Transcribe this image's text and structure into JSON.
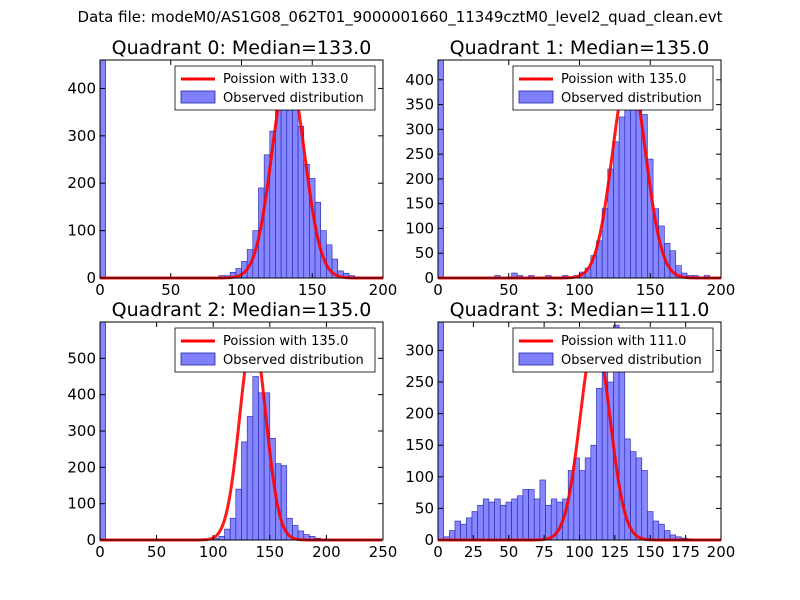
{
  "figure": {
    "suptitle": "Data file: modeM0/AS1G08_062T01_9000001660_11349cztM0_level2_quad_clean.evt"
  },
  "colors": {
    "bar_fill": "#8080ff",
    "bar_edge": "#2222aa",
    "model_line": "#ff0000"
  },
  "chart_data": [
    {
      "type": "bar",
      "title": "Quadrant 0: Median=133.0",
      "legend": {
        "placement": "top-right",
        "entries": [
          "Poission with 133.0",
          "Observed distribution"
        ]
      },
      "xlim": [
        0,
        200
      ],
      "ylim": [
        0,
        460
      ],
      "xticks": [
        0,
        50,
        100,
        150,
        200
      ],
      "yticks": [
        0,
        100,
        200,
        300,
        400
      ],
      "bin_width": 4,
      "bins_x": [
        0,
        84,
        88,
        92,
        96,
        100,
        104,
        108,
        112,
        116,
        120,
        124,
        128,
        132,
        136,
        140,
        144,
        148,
        152,
        156,
        160,
        164,
        168,
        172,
        176,
        180
      ],
      "bins_y": [
        460,
        5,
        5,
        12,
        20,
        35,
        60,
        100,
        190,
        260,
        310,
        370,
        410,
        430,
        390,
        320,
        240,
        210,
        160,
        100,
        70,
        40,
        15,
        10,
        5,
        2
      ],
      "poisson_mean": 133.0,
      "poisson_peak": 435
    },
    {
      "type": "bar",
      "title": "Quadrant 1: Median=135.0",
      "legend": {
        "placement": "top-right",
        "entries": [
          "Poission with 135.0",
          "Observed distribution"
        ]
      },
      "xlim": [
        0,
        200
      ],
      "ylim": [
        0,
        440
      ],
      "xticks": [
        0,
        50,
        100,
        150,
        200
      ],
      "yticks": [
        0,
        50,
        100,
        150,
        200,
        250,
        300,
        350,
        400
      ],
      "bin_width": 4,
      "bins_x": [
        0,
        40,
        52,
        56,
        64,
        76,
        88,
        96,
        100,
        104,
        108,
        112,
        116,
        120,
        124,
        128,
        132,
        136,
        140,
        144,
        148,
        152,
        156,
        160,
        164,
        168,
        172,
        176,
        180,
        188
      ],
      "bins_y": [
        440,
        5,
        10,
        5,
        5,
        5,
        5,
        5,
        12,
        20,
        45,
        75,
        140,
        220,
        275,
        325,
        360,
        400,
        360,
        330,
        240,
        140,
        105,
        70,
        55,
        25,
        10,
        5,
        5,
        5
      ],
      "poisson_mean": 135.0,
      "poisson_peak": 420
    },
    {
      "type": "bar",
      "title": "Quadrant 2: Median=135.0",
      "legend": {
        "placement": "top-right",
        "entries": [
          "Poission with 135.0",
          "Observed distribution"
        ]
      },
      "xlim": [
        0,
        250
      ],
      "ylim": [
        0,
        600
      ],
      "xticks": [
        0,
        50,
        100,
        150,
        200,
        250
      ],
      "yticks": [
        0,
        100,
        200,
        300,
        400,
        500
      ],
      "bin_width": 5,
      "bins_x": [
        0,
        100,
        105,
        110,
        115,
        120,
        125,
        130,
        135,
        140,
        145,
        150,
        155,
        160,
        165,
        170,
        175,
        180,
        185,
        190,
        195,
        200
      ],
      "bins_y": [
        600,
        5,
        10,
        30,
        60,
        140,
        270,
        340,
        450,
        405,
        405,
        280,
        210,
        205,
        60,
        40,
        25,
        15,
        10,
        5,
        3,
        2
      ],
      "poisson_mean": 135.0,
      "poisson_peak": 560
    },
    {
      "type": "bar",
      "title": "Quadrant 3: Median=111.0",
      "legend": {
        "placement": "top-right",
        "entries": [
          "Poission with 111.0",
          "Observed distribution"
        ]
      },
      "xlim": [
        0,
        200
      ],
      "ylim": [
        0,
        345
      ],
      "xticks": [
        0,
        25,
        50,
        75,
        100,
        125,
        150,
        175,
        200
      ],
      "yticks": [
        0,
        50,
        100,
        150,
        200,
        250,
        300
      ],
      "bin_width": 4,
      "bins_x": [
        0,
        4,
        8,
        12,
        16,
        20,
        24,
        28,
        32,
        36,
        40,
        44,
        48,
        52,
        56,
        60,
        64,
        68,
        72,
        76,
        80,
        84,
        88,
        92,
        96,
        100,
        104,
        108,
        112,
        116,
        120,
        124,
        128,
        132,
        136,
        140,
        144,
        148,
        152,
        156,
        160,
        164,
        168,
        172,
        176
      ],
      "bins_y": [
        345,
        5,
        15,
        30,
        25,
        35,
        45,
        55,
        65,
        60,
        65,
        55,
        60,
        65,
        70,
        80,
        80,
        65,
        95,
        55,
        65,
        60,
        65,
        110,
        130,
        110,
        130,
        150,
        240,
        270,
        250,
        340,
        300,
        160,
        140,
        130,
        110,
        45,
        30,
        25,
        15,
        8,
        5,
        3,
        2
      ],
      "poisson_mean": 111.0,
      "poisson_peak": 320
    }
  ]
}
